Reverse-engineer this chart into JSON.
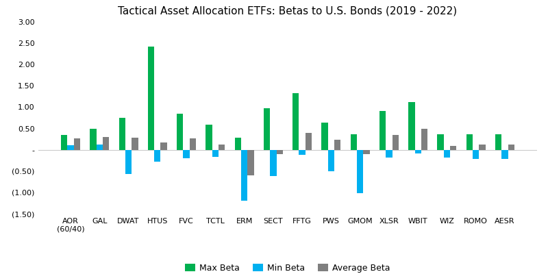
{
  "title": "Tactical Asset Allocation ETFs: Betas to U.S. Bonds (2019 - 2022)",
  "categories": [
    "AOR\n(60/40)",
    "GAL",
    "DWAT",
    "HTUS",
    "FVC",
    "TCTL",
    "ERM",
    "SECT",
    "FFTG",
    "PWS",
    "GMOM",
    "XLSR",
    "WBIT",
    "WIZ",
    "ROMO",
    "AESR"
  ],
  "max_beta": [
    0.35,
    0.49,
    0.75,
    2.42,
    0.85,
    0.59,
    0.28,
    0.97,
    1.33,
    0.63,
    0.37,
    0.91,
    1.12,
    0.37,
    0.37,
    0.37
  ],
  "min_beta": [
    0.1,
    0.13,
    -0.56,
    -0.28,
    -0.2,
    -0.17,
    -1.2,
    -0.62,
    -0.12,
    -0.5,
    -1.02,
    -0.18,
    -0.08,
    -0.18,
    -0.22,
    -0.22
  ],
  "avg_beta": [
    0.27,
    0.3,
    0.29,
    0.17,
    0.27,
    0.13,
    -0.6,
    -0.1,
    0.4,
    0.23,
    -0.1,
    0.35,
    0.5,
    0.09,
    0.12,
    0.12
  ],
  "bar_width": 0.22,
  "colors": {
    "max": "#00B050",
    "min": "#00B0F0",
    "avg": "#7F7F7F"
  },
  "ylim": [
    -1.5,
    3.0
  ],
  "yticks": [
    -1.5,
    -1.0,
    -0.5,
    0.0,
    0.5,
    1.0,
    1.5,
    2.0,
    2.5,
    3.0
  ],
  "ytick_labels": [
    "(1.50)",
    "(1.00)",
    "(0.50)",
    "-",
    "0.50",
    "1.00",
    "1.50",
    "2.00",
    "2.50",
    "3.00"
  ],
  "background_color": "#FFFFFF",
  "legend_labels": [
    "Max Beta",
    "Min Beta",
    "Average Beta"
  ],
  "hline_color": "#CCCCCC",
  "title_fontsize": 11,
  "tick_fontsize": 8,
  "legend_fontsize": 9
}
